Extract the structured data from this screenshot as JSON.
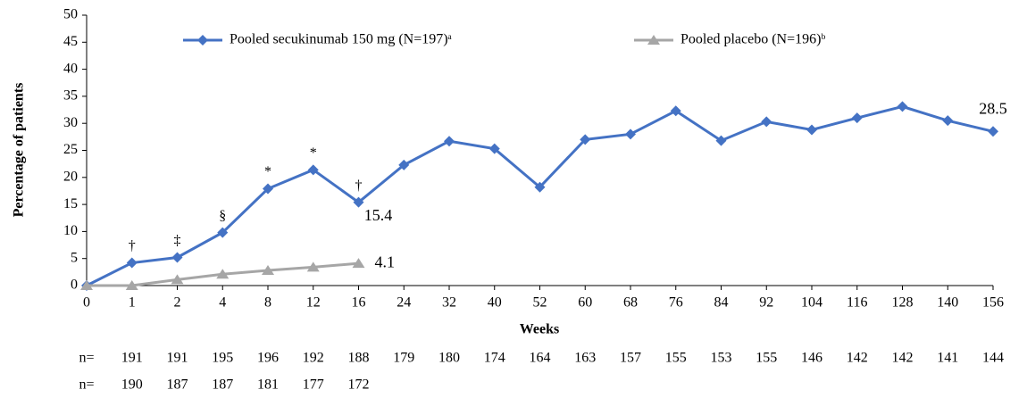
{
  "chart_data": {
    "type": "line",
    "x_label": "Weeks",
    "y_label": "Percentage of patients",
    "categories": [
      "0",
      "1",
      "2",
      "4",
      "8",
      "12",
      "16",
      "24",
      "32",
      "40",
      "52",
      "60",
      "68",
      "76",
      "84",
      "92",
      "104",
      "116",
      "128",
      "140",
      "156"
    ],
    "series": [
      {
        "name": "Pooled secukinumab 150 mg (N=197)ᵃ",
        "color": "#4472c4",
        "marker": "diamond",
        "label_color": "#8496b0",
        "values": [
          0,
          4.2,
          5.2,
          9.8,
          17.9,
          21.4,
          15.4,
          22.3,
          26.7,
          25.3,
          18.2,
          27.0,
          28.0,
          32.3,
          26.8,
          30.3,
          28.8,
          31.0,
          33.1,
          30.5,
          28.5
        ],
        "value_labels": [
          null,
          null,
          null,
          null,
          null,
          null,
          "15.4",
          null,
          null,
          null,
          null,
          null,
          null,
          null,
          null,
          null,
          null,
          null,
          null,
          null,
          "28.5"
        ],
        "annotations": [
          null,
          "†",
          "‡",
          "§",
          "*",
          "*",
          "†",
          null,
          null,
          null,
          null,
          null,
          null,
          null,
          null,
          null,
          null,
          null,
          null,
          null,
          null
        ]
      },
      {
        "name": "Pooled placebo (N=196)ᵇ",
        "color": "#a6a6a6",
        "marker": "triangle",
        "label_color": "#808080",
        "values": [
          0,
          0,
          1.1,
          2.1,
          2.8,
          3.4,
          4.1,
          null,
          null,
          null,
          null,
          null,
          null,
          null,
          null,
          null,
          null,
          null,
          null,
          null,
          null
        ],
        "value_labels": [
          null,
          null,
          null,
          null,
          null,
          null,
          "4.1",
          null,
          null,
          null,
          null,
          null,
          null,
          null,
          null,
          null,
          null,
          null,
          null,
          null,
          null
        ]
      }
    ],
    "n_rows": [
      {
        "label": "n=",
        "color": "#2e75b6",
        "values": [
          null,
          191,
          191,
          195,
          196,
          192,
          188,
          179,
          180,
          174,
          164,
          163,
          157,
          155,
          153,
          155,
          146,
          142,
          142,
          141,
          144
        ]
      },
      {
        "label": "n=",
        "color": "#7f7f7f",
        "values": [
          null,
          190,
          187,
          187,
          181,
          177,
          172,
          null,
          null,
          null,
          null,
          null,
          null,
          null,
          null,
          null,
          null,
          null,
          null,
          null,
          null
        ]
      }
    ],
    "ylim": [
      0,
      50
    ],
    "yticks": [
      0,
      5,
      10,
      15,
      20,
      25,
      30,
      35,
      40,
      45,
      50
    ],
    "grid": false
  }
}
